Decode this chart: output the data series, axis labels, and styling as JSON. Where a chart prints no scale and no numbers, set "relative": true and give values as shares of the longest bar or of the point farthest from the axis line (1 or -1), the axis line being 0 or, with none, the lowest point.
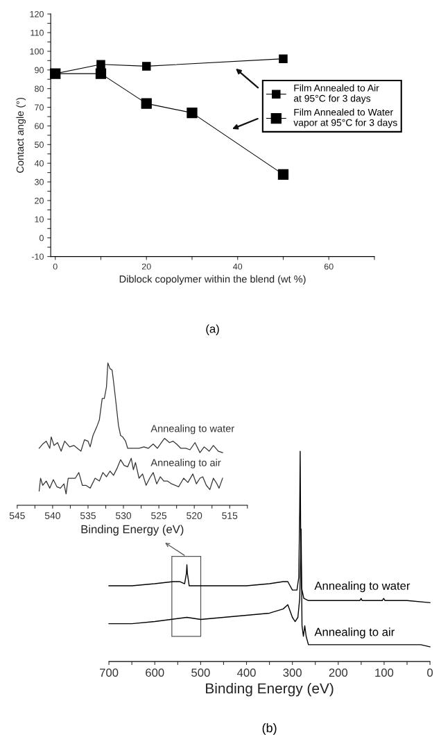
{
  "chart_data": [
    {
      "type": "line",
      "xlabel": "Diblock copolymer within the blend (wt %)",
      "ylabel": "Contact angle (°)",
      "annotations": [
        "(a)"
      ],
      "marker": "square",
      "legend": "right",
      "xlim": [
        -1,
        70
      ],
      "xticks": [
        0,
        {
          "value": 10,
          "label": null
        },
        20,
        {
          "value": 30,
          "label": null
        },
        40,
        {
          "value": 50,
          "label": null
        },
        60,
        {
          "value": 70,
          "label": null
        }
      ],
      "ylim": [
        -10,
        120
      ],
      "yticks": [
        -10,
        {
          "value": -5,
          "label": null
        },
        0,
        {
          "value": 5,
          "label": null
        },
        10,
        {
          "value": 15,
          "label": null
        },
        20,
        {
          "value": 25,
          "label": null
        },
        30,
        {
          "value": 35,
          "label": null
        },
        40,
        {
          "value": 45,
          "label": null
        },
        50,
        {
          "value": 55,
          "label": null
        },
        60,
        {
          "value": 65,
          "label": null
        },
        70,
        {
          "value": 75,
          "label": null
        },
        80,
        {
          "value": 85,
          "label": null
        },
        90,
        {
          "value": 95,
          "label": null
        },
        100,
        {
          "value": 105,
          "label": null
        },
        110,
        {
          "value": 115,
          "label": null
        },
        120
      ],
      "series": [
        {
          "name": "Film Annealed to Air\nat 95°C for 3 days",
          "color": "#000000",
          "x": [
            0,
            10,
            20,
            50
          ],
          "values": [
            88,
            93,
            92,
            96
          ]
        },
        {
          "name": "Film Annealed to Water\nvapor at 95°C for 3 days",
          "color": "#000000",
          "x": [
            0,
            10,
            20,
            30,
            50
          ],
          "values": [
            88,
            88,
            72,
            67,
            34
          ]
        }
      ]
    },
    {
      "type": "line",
      "xlabel": "Binding Energy (eV)",
      "relative": true,
      "tick_labels": "x",
      "xlim": [
        545,
        512.5
      ],
      "xticks": [
        545,
        {
          "value": 542.5,
          "label": null
        },
        540,
        {
          "value": 537.5,
          "label": null
        },
        535,
        {
          "value": 532.5,
          "label": null
        },
        530,
        {
          "value": 527.5,
          "label": null
        },
        525,
        {
          "value": 522.5,
          "label": null
        },
        520,
        {
          "value": 517.5,
          "label": null
        },
        515,
        {
          "value": 512.5,
          "label": null
        }
      ],
      "series": [
        {
          "name": "Annealing to water",
          "color": "#333333",
          "x": [
            541.9,
            541.4,
            540.9,
            540.4,
            540.2,
            539.8,
            539.3,
            538.8,
            538.3,
            537.6,
            537.0,
            536.5,
            536.0,
            535.5,
            535.0,
            534.7,
            534.3,
            533.7,
            533.4,
            533.0,
            532.7,
            532.4,
            532.2,
            531.9,
            531.6,
            531.4,
            531.1,
            530.7,
            530.4,
            530.1,
            529.7,
            529.4,
            528.4,
            527.8,
            527.1,
            526.5,
            525.8,
            525.2,
            524.5,
            524.2,
            523.5,
            523.0,
            522.5,
            521.9,
            521.2,
            520.6,
            519.9,
            519.2,
            518.6,
            517.9,
            517.3,
            516.6,
            516.0
          ],
          "values": [
            0.4,
            0.43,
            0.45,
            0.4,
            0.48,
            0.42,
            0.44,
            0.38,
            0.45,
            0.41,
            0.42,
            0.4,
            0.38,
            0.46,
            0.45,
            0.41,
            0.49,
            0.56,
            0.6,
            0.75,
            0.75,
            0.83,
            1.0,
            0.96,
            0.95,
            0.87,
            0.74,
            0.56,
            0.49,
            0.48,
            0.45,
            0.4,
            0.4,
            0.4,
            0.41,
            0.4,
            0.43,
            0.4,
            0.45,
            0.47,
            0.44,
            0.45,
            0.43,
            0.4,
            0.4,
            0.39,
            0.44,
            0.37,
            0.41,
            0.38,
            0.42,
            0.38,
            0.37
          ]
        },
        {
          "name": "Annealing to air",
          "color": "#333333",
          "x": [
            541.9,
            541.7,
            541.4,
            540.9,
            540.4,
            539.9,
            539.4,
            538.9,
            538.4,
            538.1,
            537.8,
            537.3,
            536.8,
            536.3,
            535.8,
            535.3,
            534.7,
            534.0,
            533.4,
            532.9,
            532.4,
            531.9,
            531.4,
            530.9,
            530.4,
            529.9,
            529.4,
            528.9,
            528.6,
            528.3,
            527.8,
            527.3,
            526.8,
            526.3,
            525.8,
            525.3,
            524.8,
            524.3,
            523.8,
            523.2,
            522.2,
            521.5,
            520.9,
            520.2,
            519.7,
            519.2,
            518.8,
            518.3,
            517.8,
            517.3,
            516.8,
            516.5,
            516.0
          ],
          "values": [
            0.1,
            0.19,
            0.14,
            0.17,
            0.12,
            0.18,
            0.13,
            0.12,
            0.15,
            0.08,
            0.19,
            0.19,
            0.19,
            0.23,
            0.14,
            0.14,
            0.12,
            0.19,
            0.17,
            0.23,
            0.2,
            0.24,
            0.21,
            0.26,
            0.32,
            0.28,
            0.27,
            0.33,
            0.25,
            0.3,
            0.19,
            0.22,
            0.14,
            0.19,
            0.23,
            0.15,
            0.2,
            0.17,
            0.17,
            0.15,
            0.13,
            0.19,
            0.16,
            0.22,
            0.15,
            0.19,
            0.2,
            0.14,
            0.11,
            0.19,
            0.15,
            0.12,
            0.19
          ]
        }
      ]
    },
    {
      "type": "line",
      "xlabel": "Binding Energy (eV)",
      "annotations": [
        "(b)"
      ],
      "relative": true,
      "tick_labels": "x",
      "xlim": [
        700,
        0
      ],
      "xticks": [
        700,
        {
          "value": 650,
          "label": null
        },
        600,
        {
          "value": 550,
          "label": null
        },
        500,
        {
          "value": 450,
          "label": null
        },
        400,
        {
          "value": 350,
          "label": null
        },
        300,
        {
          "value": 250,
          "label": null
        },
        200,
        {
          "value": 150,
          "label": null
        },
        100,
        {
          "value": 50,
          "label": null
        },
        0
      ],
      "series": [
        {
          "name": "Annealing to water",
          "color": "#000000",
          "x": [
            700,
            650,
            600,
            560,
            545,
            535,
            531,
            530,
            529,
            525,
            500,
            450,
            400,
            350,
            320,
            310,
            300,
            290,
            286,
            284,
            283,
            282,
            280,
            278,
            275,
            265,
            200,
            153,
            150,
            148,
            104,
            101,
            98,
            50,
            0
          ],
          "values": [
            0.36,
            0.36,
            0.37,
            0.38,
            0.38,
            0.37,
            0.42,
            0.46,
            0.42,
            0.36,
            0.36,
            0.36,
            0.36,
            0.37,
            0.38,
            0.38,
            0.34,
            0.34,
            0.4,
            0.72,
            1.0,
            0.63,
            0.35,
            0.33,
            0.3,
            0.29,
            0.29,
            0.29,
            0.3,
            0.29,
            0.29,
            0.3,
            0.29,
            0.29,
            0.28
          ]
        },
        {
          "name": "Annealing to air",
          "color": "#000000",
          "x": [
            700,
            650,
            600,
            530,
            500,
            450,
            400,
            350,
            320,
            310,
            300,
            294,
            288,
            284,
            282,
            281,
            279,
            276,
            273,
            270,
            265,
            200,
            150,
            100,
            20,
            0
          ],
          "values": [
            0.18,
            0.18,
            0.19,
            0.21,
            0.2,
            0.21,
            0.22,
            0.23,
            0.25,
            0.27,
            0.21,
            0.19,
            0.21,
            0.3,
            0.49,
            0.63,
            0.17,
            0.12,
            0.17,
            0.12,
            0.08,
            0.08,
            0.08,
            0.08,
            0.08,
            0.07
          ]
        }
      ]
    }
  ]
}
